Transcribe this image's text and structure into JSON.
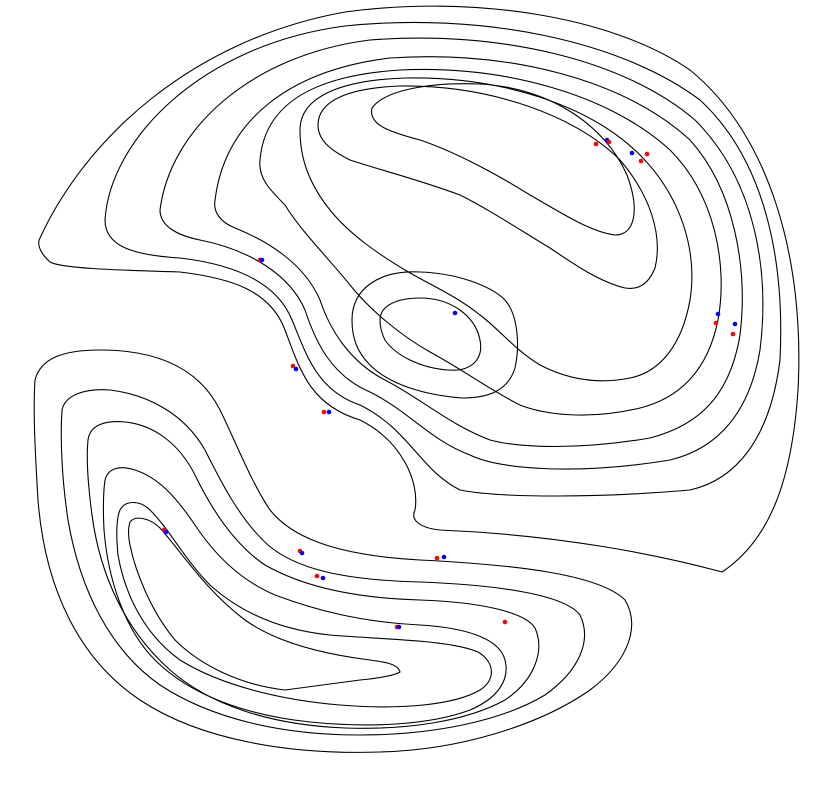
{
  "diagram": {
    "type": "contour-map",
    "background_color": "#ffffff",
    "line_color": "#000000",
    "marker_colors": {
      "red": "#ff0000",
      "blue": "#0000ff"
    },
    "marker_count": 28
  }
}
